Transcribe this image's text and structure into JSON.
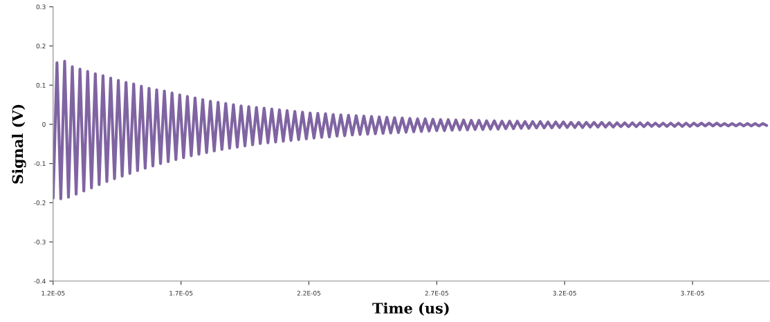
{
  "chart_data": {
    "type": "line",
    "xlabel": "Time (us)",
    "ylabel": "Signal (V)",
    "xlim": [
      1.2e-05,
      4e-05
    ],
    "xticks": [
      {
        "value": 1.2e-05,
        "label": "1.2E-05"
      },
      {
        "value": 1.7e-05,
        "label": "1.7E-05"
      },
      {
        "value": 2.2e-05,
        "label": "2.2E-05"
      },
      {
        "value": 2.7e-05,
        "label": "2.7E-05"
      },
      {
        "value": 3.2e-05,
        "label": "3.2E-05"
      },
      {
        "value": 3.7e-05,
        "label": "3.7E-05"
      }
    ],
    "ylim": [
      -0.4,
      0.3
    ],
    "yticks": [
      -0.4,
      -0.3,
      -0.2,
      -0.1,
      0,
      0.1,
      0.2,
      0.3
    ],
    "grid": false,
    "marker": "none",
    "line_style": "solid",
    "series": [
      {
        "color": "#8064a2",
        "x": [
          1.2e-05,
          1.215e-05,
          1.23e-05,
          1.245e-05,
          1.26e-05,
          1.275e-05,
          1.29e-05,
          1.305e-05,
          1.32e-05,
          1.335e-05,
          1.35e-05,
          1.365e-05,
          1.38e-05,
          1.395e-05,
          1.41e-05,
          1.425e-05,
          1.44e-05,
          1.455e-05,
          1.47e-05,
          1.485e-05,
          1.5e-05,
          1.515e-05,
          1.53e-05,
          1.545e-05,
          1.56e-05,
          1.575e-05,
          1.59e-05,
          1.605e-05,
          1.62e-05,
          1.635e-05,
          1.65e-05,
          1.665e-05,
          1.68e-05,
          1.695e-05,
          1.71e-05,
          1.725e-05,
          1.74e-05,
          1.755e-05,
          1.77e-05,
          1.785e-05,
          1.8e-05,
          1.815e-05,
          1.83e-05,
          1.845e-05,
          1.86e-05,
          1.875e-05,
          1.89e-05,
          1.905e-05,
          1.92e-05,
          1.935e-05,
          1.95e-05,
          1.965e-05,
          1.98e-05,
          1.995e-05,
          2.01e-05,
          2.025e-05,
          2.04e-05,
          2.055e-05,
          2.07e-05,
          2.085e-05,
          2.1e-05,
          2.115e-05,
          2.13e-05,
          2.145e-05,
          2.16e-05,
          2.175e-05,
          2.19e-05,
          2.205e-05,
          2.22e-05,
          2.235e-05,
          2.25e-05,
          2.265e-05,
          2.28e-05,
          2.295e-05,
          2.31e-05,
          2.325e-05,
          2.34e-05,
          2.355e-05,
          2.37e-05,
          2.385e-05,
          2.4e-05,
          2.415e-05,
          2.43e-05,
          2.445e-05,
          2.46e-05,
          2.475e-05,
          2.49e-05,
          2.505e-05,
          2.52e-05,
          2.535e-05,
          2.55e-05,
          2.565e-05,
          2.58e-05,
          2.595e-05,
          2.61e-05,
          2.625e-05,
          2.64e-05,
          2.655e-05,
          2.67e-05,
          2.685e-05,
          2.7e-05,
          2.715e-05,
          2.73e-05,
          2.745e-05,
          2.76e-05,
          2.775e-05,
          2.79e-05,
          2.805e-05,
          2.82e-05,
          2.835e-05,
          2.85e-05,
          2.865e-05,
          2.88e-05,
          2.895e-05,
          2.91e-05,
          2.925e-05,
          2.94e-05,
          2.955e-05,
          2.97e-05,
          2.985e-05,
          3e-05,
          3.015e-05,
          3.03e-05,
          3.045e-05,
          3.06e-05,
          3.075e-05,
          3.09e-05,
          3.105e-05,
          3.12e-05,
          3.135e-05,
          3.15e-05,
          3.165e-05,
          3.18e-05,
          3.195e-05,
          3.21e-05,
          3.225e-05,
          3.24e-05,
          3.255e-05,
          3.27e-05,
          3.285e-05,
          3.3e-05,
          3.315e-05,
          3.33e-05,
          3.345e-05,
          3.36e-05,
          3.375e-05,
          3.39e-05,
          3.405e-05,
          3.42e-05,
          3.435e-05,
          3.45e-05,
          3.465e-05,
          3.48e-05,
          3.495e-05,
          3.51e-05,
          3.525e-05,
          3.54e-05,
          3.555e-05,
          3.57e-05,
          3.585e-05,
          3.6e-05,
          3.615e-05,
          3.63e-05,
          3.645e-05,
          3.66e-05,
          3.675e-05,
          3.69e-05,
          3.705e-05,
          3.72e-05,
          3.735e-05,
          3.75e-05,
          3.765e-05,
          3.78e-05,
          3.795e-05,
          3.81e-05,
          3.825e-05,
          3.84e-05,
          3.855e-05,
          3.87e-05,
          3.885e-05,
          3.9e-05,
          3.915e-05,
          3.93e-05,
          3.945e-05,
          3.96e-05,
          3.975e-05,
          3.99e-05
        ],
        "values": [
          -0.188,
          0.157,
          -0.19,
          0.161,
          -0.186,
          0.147,
          -0.178,
          0.141,
          -0.17,
          0.135,
          -0.162,
          0.129,
          -0.154,
          0.124,
          -0.146,
          0.118,
          -0.139,
          0.112,
          -0.132,
          0.107,
          -0.125,
          0.103,
          -0.118,
          0.097,
          -0.112,
          0.092,
          -0.106,
          0.088,
          -0.1,
          0.085,
          -0.095,
          0.08,
          -0.09,
          0.075,
          -0.085,
          0.071,
          -0.08,
          0.067,
          -0.076,
          0.063,
          -0.072,
          0.059,
          -0.068,
          0.056,
          -0.064,
          0.053,
          -0.061,
          0.05,
          -0.058,
          0.047,
          -0.055,
          0.045,
          -0.052,
          0.043,
          -0.049,
          0.041,
          -0.047,
          0.039,
          -0.045,
          0.037,
          -0.043,
          0.035,
          -0.041,
          0.033,
          -0.039,
          0.031,
          -0.037,
          0.029,
          -0.035,
          0.028,
          -0.033,
          0.027,
          -0.032,
          0.025,
          -0.03,
          0.024,
          -0.029,
          0.023,
          -0.027,
          0.022,
          -0.026,
          0.021,
          -0.025,
          0.02,
          -0.024,
          0.019,
          -0.023,
          0.018,
          -0.022,
          0.017,
          -0.021,
          0.016,
          -0.02,
          0.015,
          -0.019,
          0.014,
          -0.018,
          0.014,
          -0.017,
          0.013,
          -0.016,
          0.012,
          -0.016,
          0.012,
          -0.015,
          0.011,
          -0.014,
          0.011,
          -0.014,
          0.01,
          -0.013,
          0.01,
          -0.013,
          0.009,
          -0.012,
          0.009,
          -0.012,
          0.008,
          -0.011,
          0.008,
          -0.011,
          0.008,
          -0.01,
          0.007,
          -0.01,
          0.007,
          -0.009,
          0.007,
          -0.009,
          0.006,
          -0.009,
          0.006,
          -0.008,
          0.006,
          -0.008,
          0.005,
          -0.008,
          0.005,
          -0.008,
          0.005,
          -0.007,
          0.005,
          -0.007,
          0.005,
          -0.007,
          0.004,
          -0.007,
          0.004,
          -0.006,
          0.004,
          -0.006,
          0.004,
          -0.006,
          0.004,
          -0.006,
          0.004,
          -0.005,
          0.003,
          -0.005,
          0.003,
          -0.005,
          0.003,
          -0.005,
          0.003,
          -0.005,
          0.003,
          -0.005,
          0.003,
          -0.004,
          0.003,
          -0.004,
          0.003,
          -0.004,
          0.003,
          -0.004,
          0.002,
          -0.004,
          0.002,
          -0.004,
          0.002,
          -0.004,
          0.002,
          -0.004,
          0.002,
          -0.004,
          0.002,
          -0.003
        ]
      }
    ]
  }
}
